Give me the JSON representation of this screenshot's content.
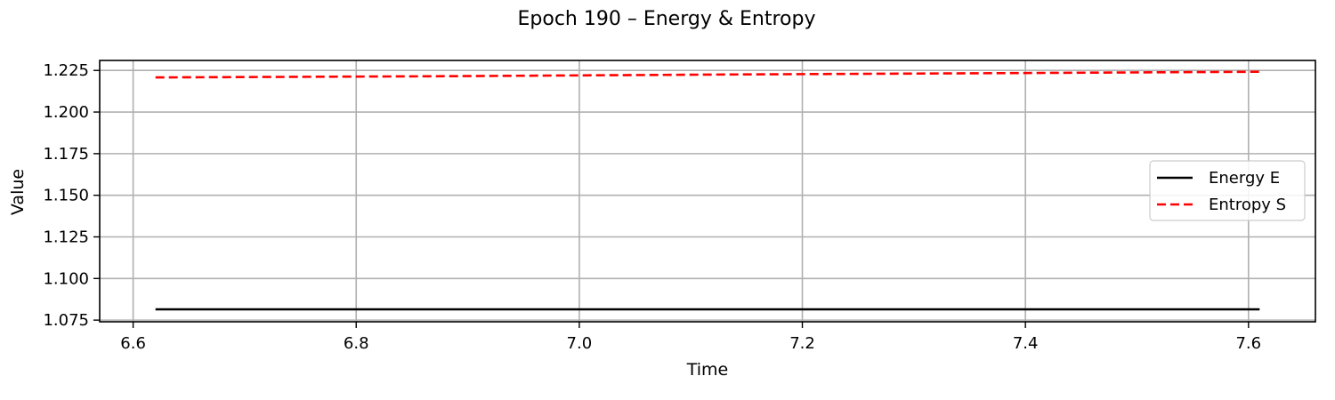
{
  "chart_data": {
    "type": "line",
    "title": "Epoch 190 – Energy & Entropy",
    "xlabel": "Time",
    "ylabel": "Value",
    "xlim": [
      6.57,
      7.66
    ],
    "ylim": [
      1.074,
      1.231
    ],
    "xticks": [
      6.6,
      6.8,
      7.0,
      7.2,
      7.4,
      7.6
    ],
    "xtick_labels": [
      "6.6",
      "6.8",
      "7.0",
      "7.2",
      "7.4",
      "7.6"
    ],
    "yticks": [
      1.075,
      1.1,
      1.125,
      1.15,
      1.175,
      1.2,
      1.225
    ],
    "ytick_labels": [
      "1.075",
      "1.100",
      "1.125",
      "1.150",
      "1.175",
      "1.200",
      "1.225"
    ],
    "grid": true,
    "legend_position": "right",
    "series": [
      {
        "name": "Energy E",
        "color": "#000000",
        "style": "solid",
        "x": [
          6.62,
          7.61
        ],
        "y": [
          1.0815,
          1.0815
        ]
      },
      {
        "name": "Entropy S",
        "color": "#ff0000",
        "style": "dashed",
        "x": [
          6.62,
          6.87,
          7.12,
          7.36,
          7.61
        ],
        "y": [
          1.2208,
          1.2215,
          1.2225,
          1.2233,
          1.2242
        ]
      }
    ]
  }
}
